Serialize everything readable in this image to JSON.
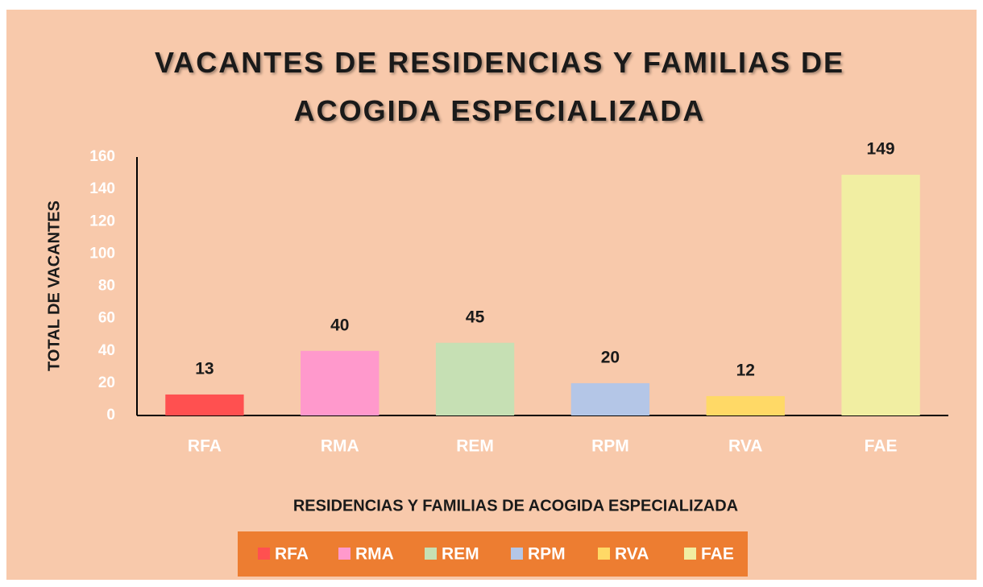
{
  "chart_data": {
    "type": "bar",
    "title": "VACANTES DE RESIDENCIAS Y FAMILIAS DE ACOGIDA ESPECIALIZADA",
    "x_label": "RESIDENCIAS Y FAMILIAS DE ACOGIDA ESPECIALIZADA",
    "y_label": "TOTAL DE VACANTES",
    "categories": [
      "RFA",
      "RMA",
      "REM",
      "RPM",
      "RVA",
      "FAE"
    ],
    "values": [
      13,
      40,
      45,
      20,
      12,
      149
    ],
    "colors": [
      "#ff5050",
      "#ff99cc",
      "#c6e0b4",
      "#b4c6e7",
      "#ffd966",
      "#f1eea2"
    ],
    "ylim": [
      0,
      160
    ],
    "yticks": [
      0,
      20,
      40,
      60,
      80,
      100,
      120,
      140,
      160
    ],
    "grid": false,
    "legend": "bottom"
  }
}
